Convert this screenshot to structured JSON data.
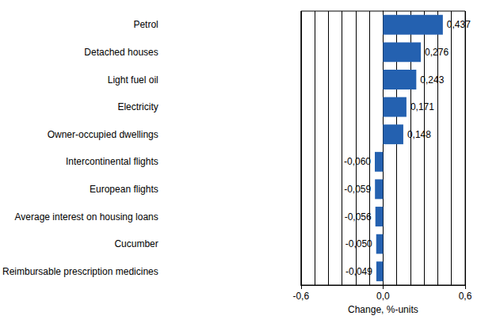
{
  "chart_data": {
    "type": "bar",
    "orientation": "horizontal",
    "categories": [
      "Petrol",
      "Detached houses",
      "Light fuel oil",
      "Electricity",
      "Owner-occupied dwellings",
      "Intercontinental flights",
      "European flights",
      "Average interest on housing loans",
      "Cucumber",
      "Reimbursable prescription medicines"
    ],
    "values": [
      0.437,
      0.276,
      0.243,
      0.171,
      0.148,
      -0.06,
      -0.059,
      -0.056,
      -0.05,
      -0.049
    ],
    "value_labels": [
      "0,437",
      "0,276",
      "0,243",
      "0,171",
      "0,148",
      "-0,060",
      "-0,059",
      "-0,056",
      "-0,050",
      "-0,049"
    ],
    "color": "#2461b0",
    "xlabel": "Change, %-units",
    "xlim": [
      -0.6,
      0.6
    ],
    "xticks": [
      {
        "value": -0.6,
        "label": "-0,6"
      },
      {
        "value": 0,
        "label": "0,0"
      },
      {
        "value": 0.6,
        "label": "0,6"
      }
    ],
    "grid": true,
    "data_labels": true
  }
}
